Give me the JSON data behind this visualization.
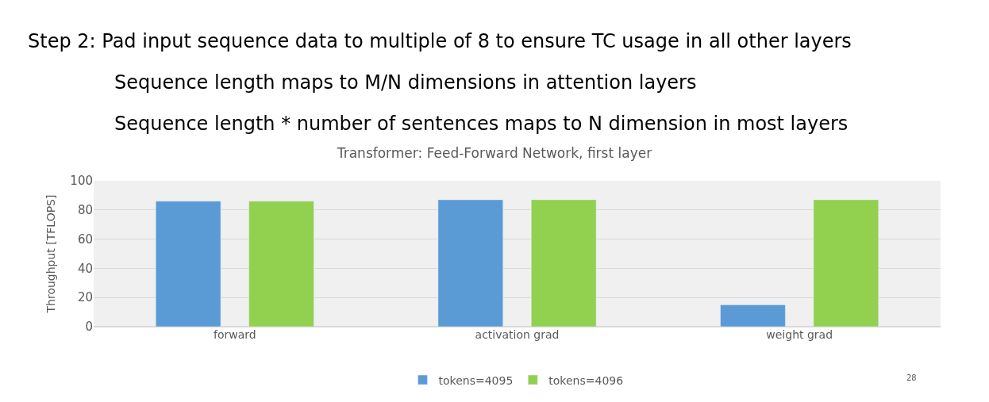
{
  "chart_data": {
    "type": "bar",
    "title": "Transformer: Feed-Forward Network, first layer",
    "annotations": [
      "Step 2: Pad input sequence data to multiple of 8 to ensure TC usage in all other layers",
      "Sequence length maps to M/N dimensions in attention layers",
      "Sequence length * number of sentences maps to N dimension in most layers",
      "28"
    ],
    "ylabel": "Throughput [TFLOPS]",
    "categories": [
      "forward",
      "activation grad",
      "weight grad"
    ],
    "series": [
      {
        "name": "tokens=4095",
        "color": "#5b9bd5",
        "values": [
          86,
          87,
          15
        ]
      },
      {
        "name": "tokens=4096",
        "color": "#92d050",
        "values": [
          86,
          87,
          87
        ]
      }
    ],
    "ylim": [
      0,
      100
    ],
    "yticks": [
      0,
      20,
      40,
      60,
      80,
      100
    ],
    "grid": "y",
    "legend": "bottom"
  }
}
